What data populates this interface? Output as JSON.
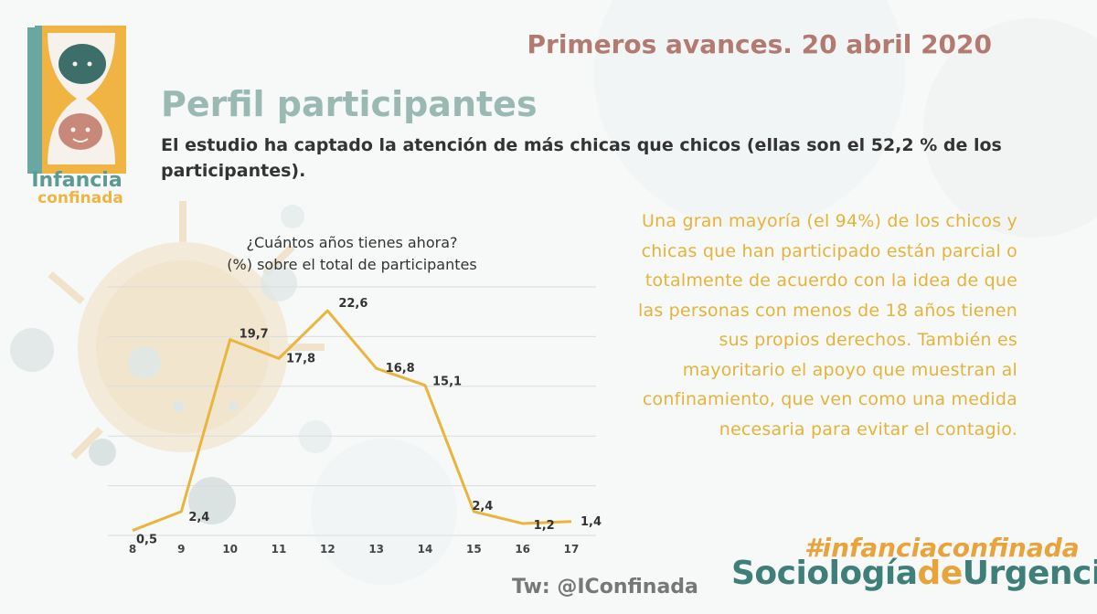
{
  "header": {
    "date_title": "Primeros avances. 20 abril 2020",
    "section_title": "Perfil participantes",
    "subtitle": "El estudio ha captado la atención de más chicas que chicos (ellas son el 52,2 % de los participantes)."
  },
  "logo": {
    "text_line1": "Infancia",
    "text_line2": "confinada",
    "colors": {
      "teal": "#6aa7a2",
      "yellow": "#f0b442",
      "face_dark": "#3d6e6a",
      "face_pink": "#c9897a"
    }
  },
  "chart_data": {
    "type": "line",
    "title": "¿Cuántos años tienes ahora?",
    "subtitle": "(%) sobre el total de participantes",
    "xlabel": "",
    "ylabel": "",
    "x": [
      "8",
      "9",
      "10",
      "11",
      "12",
      "13",
      "14",
      "15",
      "16",
      "17"
    ],
    "series": [
      {
        "values": [
          0.5,
          2.4,
          19.7,
          17.8,
          22.6,
          16.8,
          15.1,
          2.4,
          1.2,
          1.4
        ]
      }
    ],
    "data_labels": [
      "0,5",
      "2,4",
      "19,7",
      "17,8",
      "22,6",
      "16,8",
      "15,1",
      "2,4",
      "1,2",
      "1,4"
    ],
    "ylim": [
      0,
      25
    ],
    "grid": true,
    "legend": "none",
    "line_color": "#e9b53c"
  },
  "side_text": "Una gran mayoría (el 94%) de los chicos y chicas que han participado están parcial o totalmente de acuerdo con la idea de que las personas con menos de 18 años tienen sus propios derechos. También es mayoritario el apoyo que muestran al confinamiento, que ven como una medida necesaria para evitar el contagio.",
  "footer": {
    "twitter": "Tw: @IConfinada",
    "hashtag": "#infanciaconfinada",
    "brand_part1": "Sociología",
    "brand_part2": "de",
    "brand_part3": "Urgencia"
  },
  "colors": {
    "title_rose": "#b27a70",
    "title_teal": "#9ab9b3",
    "body_yellow": "#e4b43a",
    "brand_teal": "#3f7f7a",
    "brand_orange": "#e8a33b"
  }
}
